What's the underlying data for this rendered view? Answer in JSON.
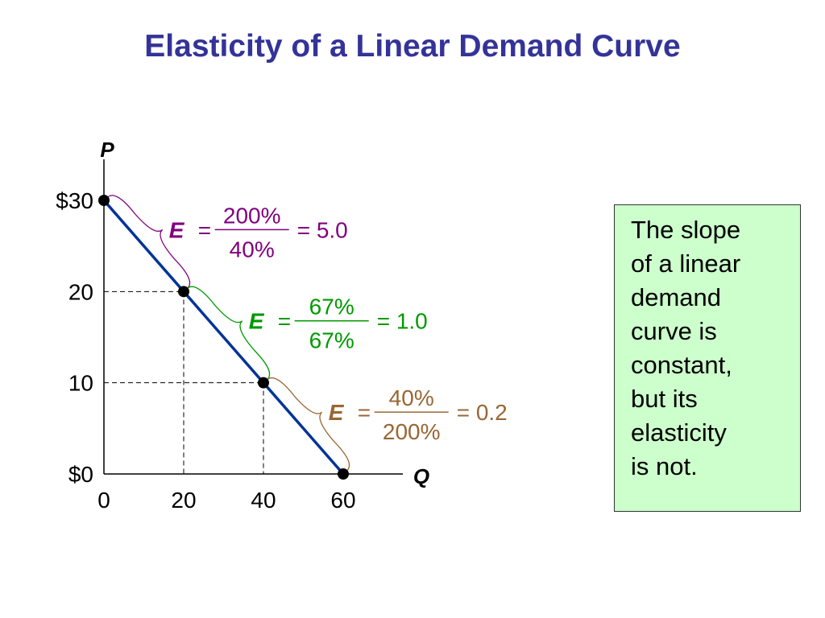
{
  "title": "Elasticity of a Linear Demand Curve",
  "chart_data": {
    "type": "line",
    "x_axis_label": "Q",
    "y_axis_label": "P",
    "xlim": [
      0,
      60
    ],
    "ylim": [
      0,
      30
    ],
    "x_ticks": [
      {
        "value": 0,
        "label": "0"
      },
      {
        "value": 20,
        "label": "20"
      },
      {
        "value": 40,
        "label": "40"
      },
      {
        "value": 60,
        "label": "60"
      }
    ],
    "y_ticks": [
      {
        "value": 30,
        "label": "$30"
      },
      {
        "value": 20,
        "label": "20"
      },
      {
        "value": 10,
        "label": "10"
      },
      {
        "value": 0,
        "label": "$0"
      }
    ],
    "demand_line": {
      "points": [
        {
          "q": 0,
          "p": 30
        },
        {
          "q": 60,
          "p": 0
        }
      ],
      "color": "#003399"
    },
    "points": [
      {
        "q": 0,
        "p": 30
      },
      {
        "q": 20,
        "p": 20
      },
      {
        "q": 40,
        "p": 10
      },
      {
        "q": 60,
        "p": 0
      }
    ],
    "guides": [
      {
        "q": 20,
        "p": 20
      },
      {
        "q": 40,
        "p": 10
      }
    ],
    "segments": [
      {
        "from": {
          "q": 0,
          "p": 30
        },
        "to": {
          "q": 20,
          "p": 20
        },
        "symbol": "E",
        "equals": "=",
        "numerator": "200%",
        "denominator": "40%",
        "result": "= 5.0",
        "color": "#800080"
      },
      {
        "from": {
          "q": 20,
          "p": 20
        },
        "to": {
          "q": 40,
          "p": 10
        },
        "symbol": "E",
        "equals": "=",
        "numerator": "67%",
        "denominator": "67%",
        "result": "= 1.0",
        "color": "#009900"
      },
      {
        "from": {
          "q": 40,
          "p": 10
        },
        "to": {
          "q": 60,
          "p": 0
        },
        "symbol": "E",
        "equals": "=",
        "numerator": "40%",
        "denominator": "200%",
        "result": "= 0.2",
        "color": "#996633"
      }
    ]
  },
  "note": {
    "lines": [
      "The slope",
      "of a linear",
      "demand",
      "curve is",
      "constant,",
      "but its",
      "elasticity",
      "is not."
    ],
    "background": "#ccffcc"
  },
  "colors": {
    "title": "#333399",
    "axis": "#000000",
    "guide": "#000000"
  }
}
